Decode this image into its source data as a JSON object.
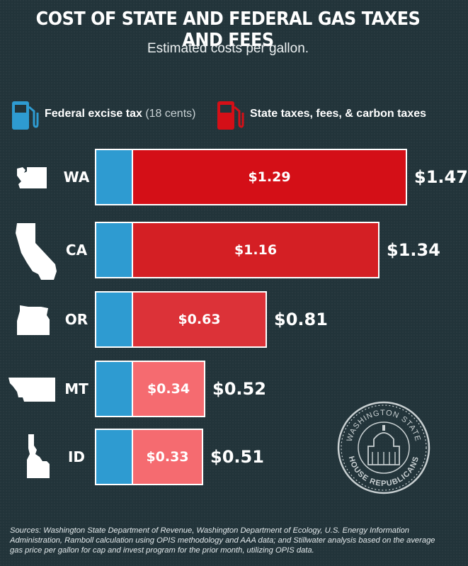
{
  "title": "COST OF STATE AND FEDERAL GAS TAXES AND FEES",
  "subtitle": "Estimated costs per gallon.",
  "legend": {
    "federal_label": "Federal excise tax",
    "federal_note": "(18 cents)",
    "state_label": "State taxes, fees, & carbon taxes"
  },
  "colors": {
    "federal": "#2e9bd1",
    "state_WA": "#d40f17",
    "state_CA": "#d41f24",
    "state_OR": "#dc3238",
    "state_MT": "#f56b70",
    "state_ID": "#f56b70",
    "background": "#22343a"
  },
  "icons": [
    "gas-pump-icon",
    "state-outline-icon",
    "seal-logo"
  ],
  "chart_data": {
    "type": "bar",
    "orientation": "horizontal",
    "stacked": true,
    "categories": [
      "WA",
      "CA",
      "OR",
      "MT",
      "ID"
    ],
    "series": [
      {
        "name": "Federal excise tax",
        "values": [
          0.18,
          0.18,
          0.18,
          0.18,
          0.18
        ]
      },
      {
        "name": "State taxes, fees, & carbon taxes",
        "values": [
          1.29,
          1.16,
          0.63,
          0.34,
          0.33
        ]
      }
    ],
    "state_labels": [
      "$1.29",
      "$1.16",
      "$0.63",
      "$0.34",
      "$0.33"
    ],
    "total_labels": [
      "$1.47",
      "$1.34",
      "$0.81",
      "$0.52",
      "$0.51"
    ],
    "totals": [
      1.47,
      1.34,
      0.81,
      0.52,
      0.51
    ],
    "legend_position": "top"
  },
  "seal": {
    "top_text": "WASHINGTON STATE",
    "bottom_text": "HOUSE REPUBLICANS"
  },
  "sources": "Sources: Washington State Department of Revenue, Washington Department of Ecology, U.S. Energy Information Administration, Ramboll calculation using OPIS methodology and AAA data; and Stillwater analysis based on the average gas price per gallon for cap and invest program for the prior month, utilizing OPIS data."
}
